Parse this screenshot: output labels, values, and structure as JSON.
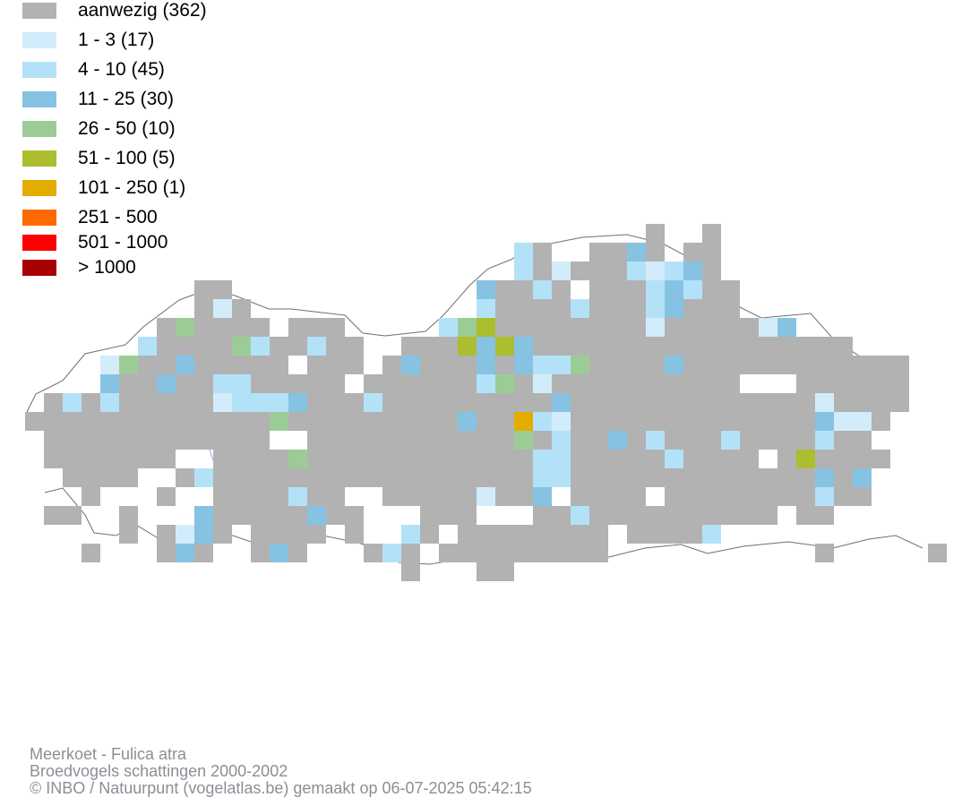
{
  "colors": {
    "present": "#b2b2b2",
    "c1_3": "#d3ecfb",
    "c4_10": "#b3e2f8",
    "c11_25": "#86c2e2",
    "c26_50": "#9ccc96",
    "c51_100": "#acbe30",
    "c101_250": "#e3ad00",
    "c251_500": "#ff6a00",
    "c501_1000": "#ff0000",
    "c1000plus": "#a80000",
    "border": "#6f6f6f",
    "river": "#8f8ff0"
  },
  "legend": [
    {
      "label": "aanwezig (362)",
      "color_key": "present"
    },
    {
      "label": "1 - 3 (17)",
      "color_key": "c1_3"
    },
    {
      "label": "4 - 10 (45)",
      "color_key": "c4_10"
    },
    {
      "label": "11 - 25 (30)",
      "color_key": "c11_25"
    },
    {
      "label": "26 - 50 (10)",
      "color_key": "c26_50"
    },
    {
      "label": "51 - 100 (5)",
      "color_key": "c51_100"
    },
    {
      "label": "101 - 250 (1)",
      "color_key": "c101_250"
    },
    {
      "label": "251 - 500",
      "color_key": "c251_500"
    },
    {
      "label": "501 - 1000",
      "color_key": "c501_1000"
    },
    {
      "label": "> 1000",
      "color_key": "c1000plus"
    }
  ],
  "footer": {
    "species": "Meerkoet - Fulica atra",
    "survey": "Broedvogels schattingen 2000-2002",
    "credit": "© INBO / Natuurpunt (vogelatlas.be) gemaakt op 06-07-2025 05:42:15"
  }
}
